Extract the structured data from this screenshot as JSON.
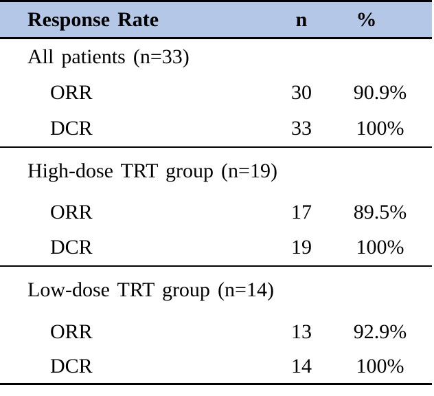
{
  "table": {
    "header": {
      "response_rate": "Response Rate",
      "n": "n",
      "percent": "%"
    },
    "sections": [
      {
        "title": "All patients (n=33)",
        "rows": [
          {
            "label": "ORR",
            "n": "30",
            "percent": "90.9%"
          },
          {
            "label": "DCR",
            "n": "33",
            "percent": "100%"
          }
        ]
      },
      {
        "title": "High-dose TRT group (n=19)",
        "rows": [
          {
            "label": "ORR",
            "n": "17",
            "percent": "89.5%"
          },
          {
            "label": "DCR",
            "n": "19",
            "percent": "100%"
          }
        ]
      },
      {
        "title": "Low-dose TRT group (n=14)",
        "rows": [
          {
            "label": "ORR",
            "n": "13",
            "percent": "92.9%"
          },
          {
            "label": "DCR",
            "n": "14",
            "percent": "100%"
          }
        ]
      }
    ],
    "colors": {
      "header_background": "#b4c7e7",
      "border": "#000000",
      "text": "#000000",
      "page_background": "#ffffff"
    }
  }
}
